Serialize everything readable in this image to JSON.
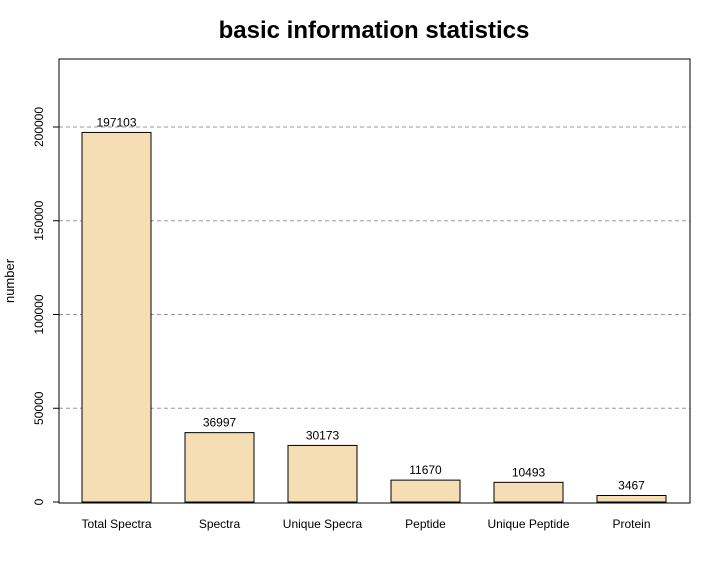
{
  "chart_data": {
    "type": "bar",
    "title": "basic information statistics",
    "xlabel": "",
    "ylabel": "number",
    "categories": [
      "Total Spectra",
      "Spectra",
      "Unique Specra",
      "Peptide",
      "Unique Peptide",
      "Protein"
    ],
    "values": [
      197103,
      36997,
      30173,
      11670,
      10493,
      3467
    ],
    "yticks": [
      0,
      50000,
      100000,
      150000,
      200000
    ],
    "ylim": [
      0,
      236500
    ],
    "grid": "horizontal-dashed",
    "bar_color": "#F5DEB3",
    "bar_border_color": "#000000",
    "grid_color": "#999999"
  }
}
